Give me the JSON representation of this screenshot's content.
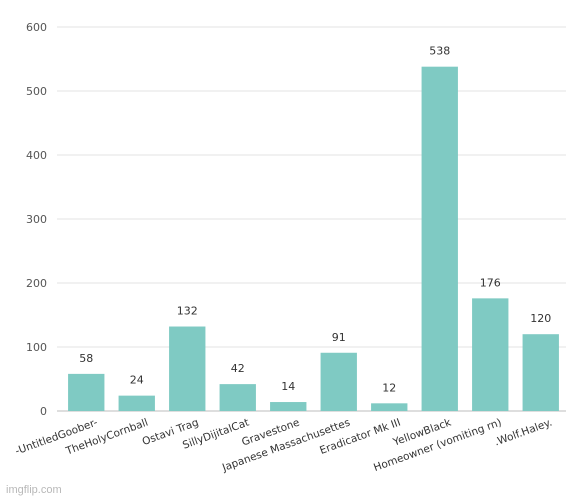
{
  "chart_data": {
    "type": "bar",
    "title": "",
    "xlabel": "",
    "ylabel": "",
    "categories": [
      "-UntitledGoober-",
      "TheHolyCornball",
      "Ostavi Trag",
      "SillyDijitalCat",
      "Gravestone",
      "Japanese Massachusettes",
      "Eradicator Mk III",
      "YellowBlack",
      "Homeowner (vomiting rn)",
      ".Wolf.Haley."
    ],
    "values": [
      58,
      24,
      132,
      42,
      14,
      91,
      12,
      538,
      176,
      120
    ],
    "data_labels": [
      "58",
      "24",
      "132",
      "42",
      "14",
      "91",
      "12",
      "538",
      "176",
      "120"
    ],
    "ylim": [
      0,
      600
    ],
    "yticks": [
      "0",
      "100",
      "200",
      "300",
      "400",
      "500",
      "600"
    ],
    "grid": true,
    "bar_color": "#7fcac3"
  },
  "watermark": "imgflip.com"
}
